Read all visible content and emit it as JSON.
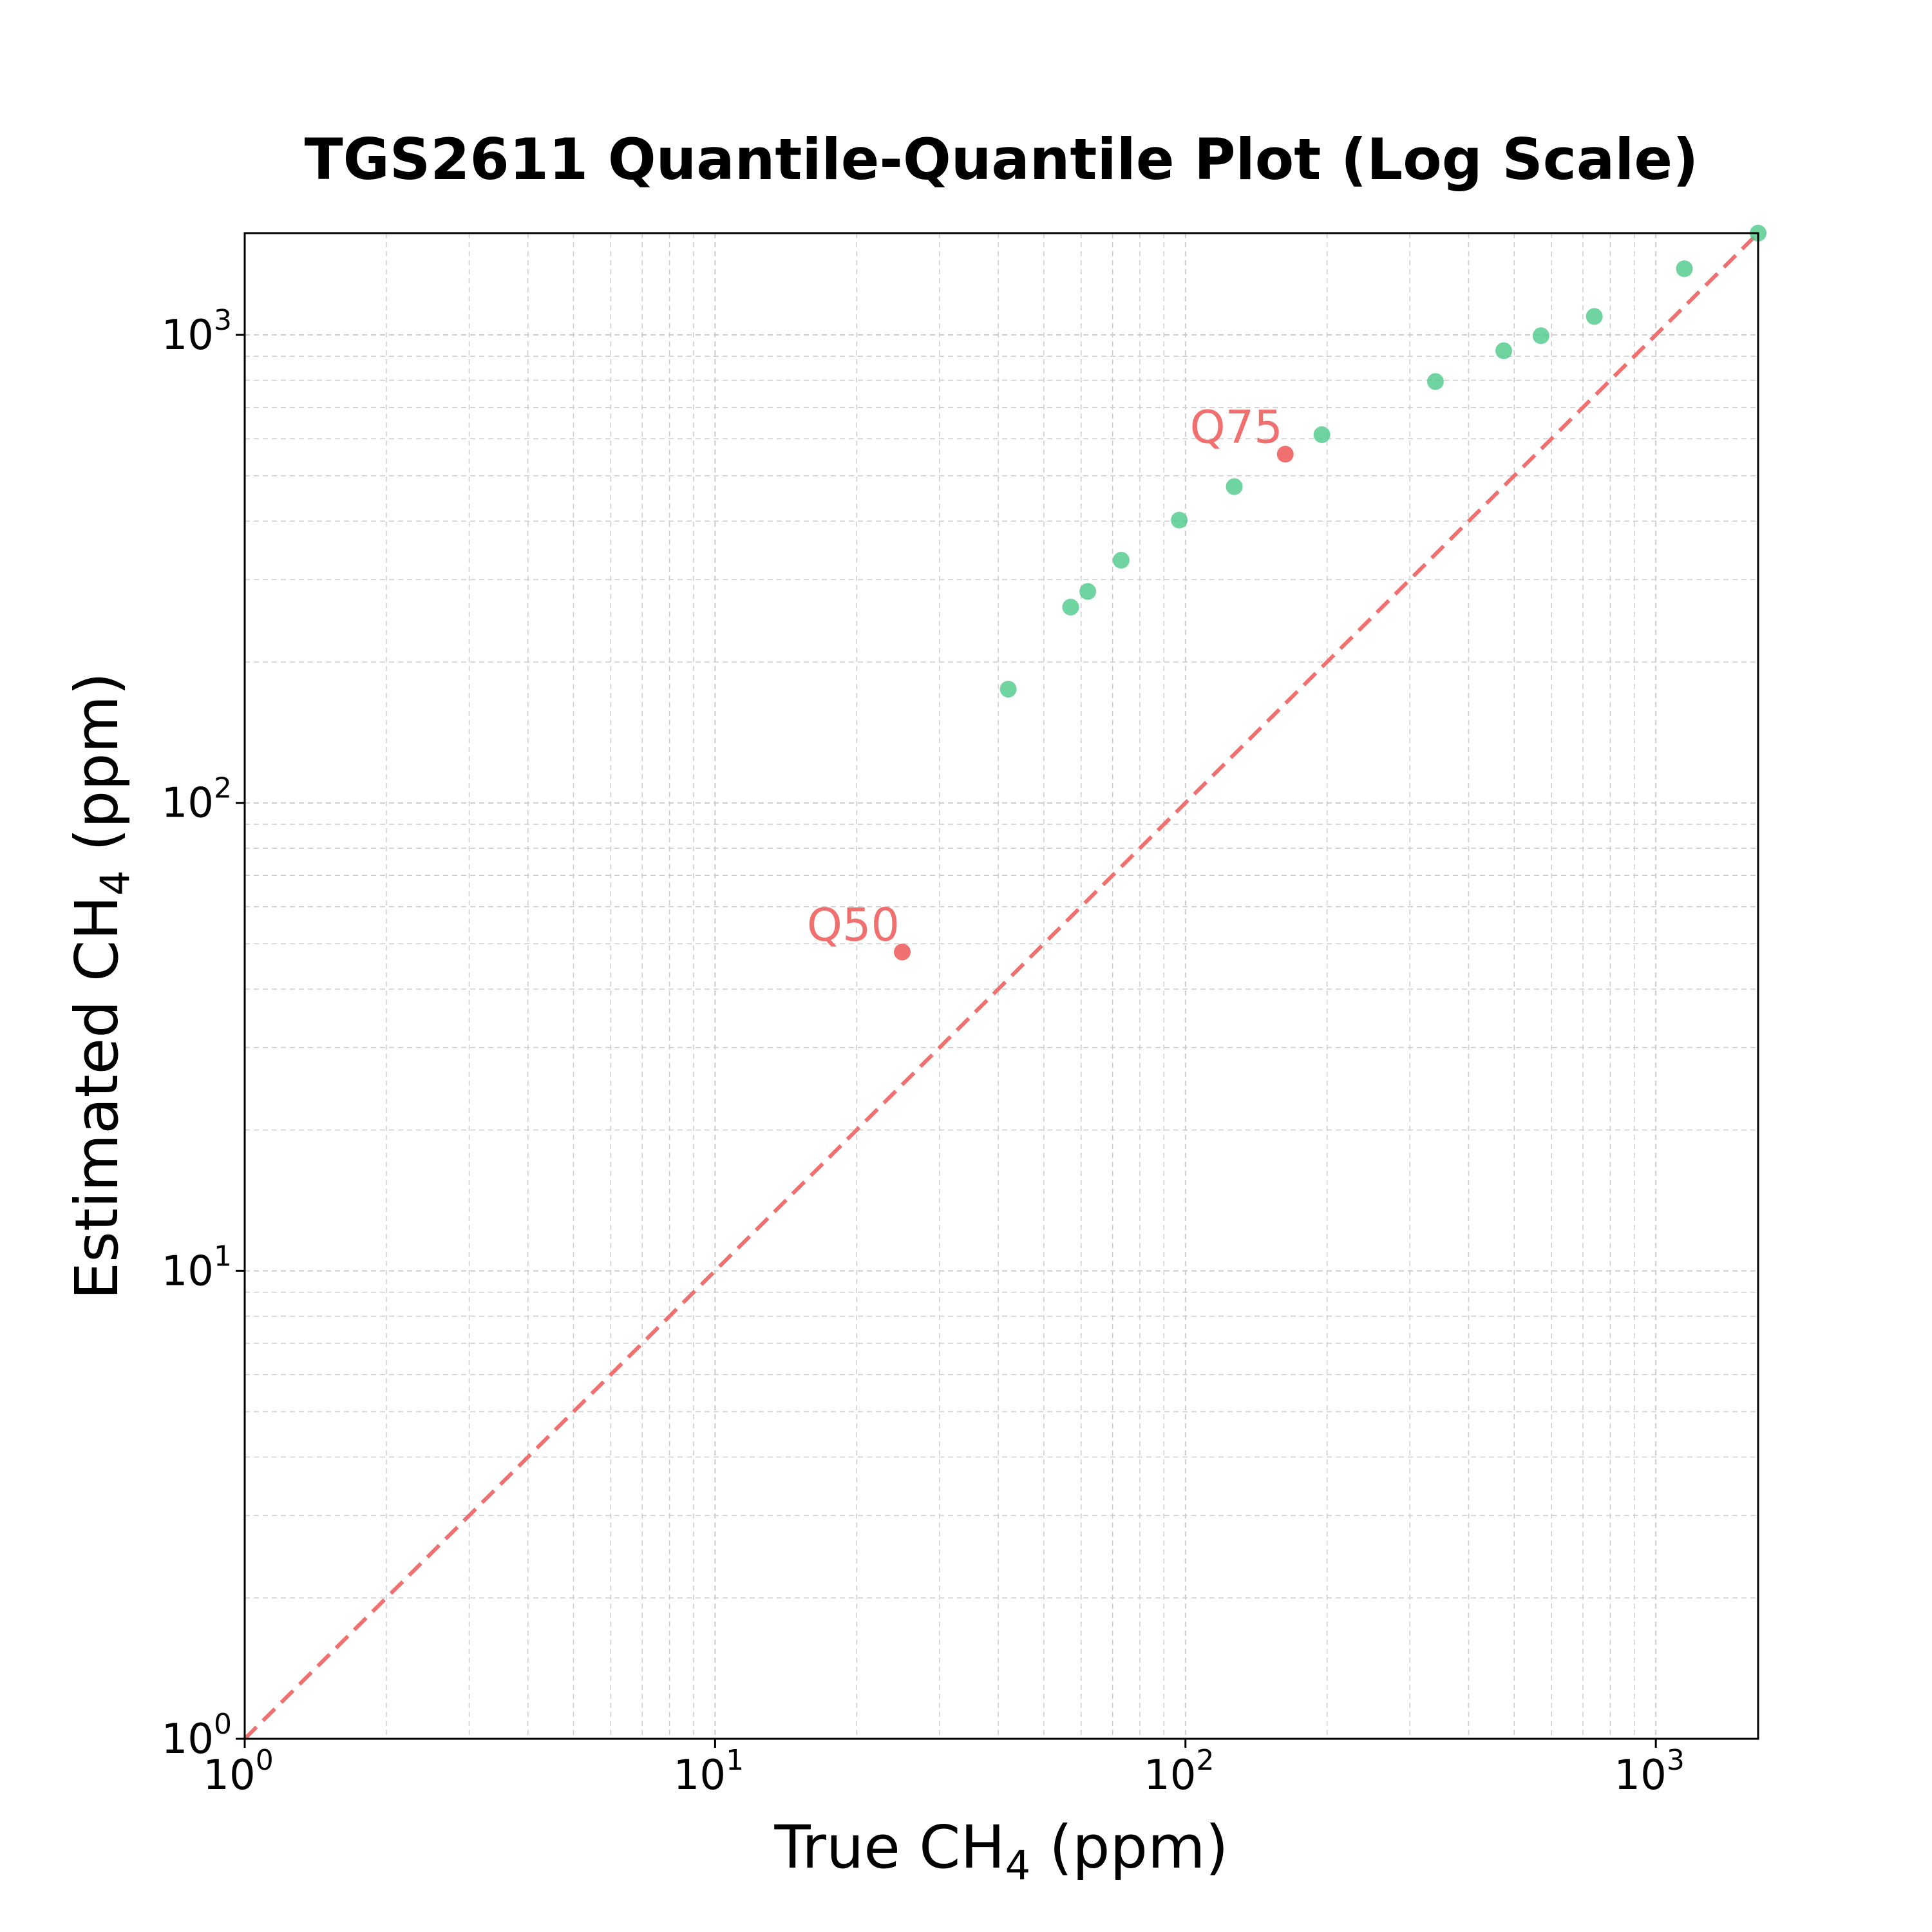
{
  "chart_data": {
    "type": "scatter",
    "title": "TGS2611 Quantile-Quantile Plot (Log Scale)",
    "xlabel": {
      "main": "True CH",
      "sub": "4",
      "tail": " (ppm)"
    },
    "ylabel": {
      "main": "Estimated CH",
      "sub": "4",
      "tail": " (ppm)"
    },
    "xscale": "log",
    "yscale": "log",
    "xlim": [
      1,
      1650
    ],
    "ylim": [
      1,
      1650
    ],
    "grid": true,
    "x_ticks": [
      {
        "base": "10",
        "exp": "0"
      },
      {
        "base": "10",
        "exp": "1"
      },
      {
        "base": "10",
        "exp": "2"
      },
      {
        "base": "10",
        "exp": "3"
      }
    ],
    "y_ticks": [
      {
        "base": "10",
        "exp": "0"
      },
      {
        "base": "10",
        "exp": "1"
      },
      {
        "base": "10",
        "exp": "2"
      },
      {
        "base": "10",
        "exp": "3"
      }
    ],
    "reference_line": {
      "type": "y=x",
      "style": "dashed",
      "color": "#f07070"
    },
    "series": [
      {
        "color": "#4cc98a",
        "points": [
          {
            "x": 42,
            "y": 175
          },
          {
            "x": 57,
            "y": 262
          },
          {
            "x": 62,
            "y": 283
          },
          {
            "x": 73,
            "y": 330
          },
          {
            "x": 97,
            "y": 402
          },
          {
            "x": 127,
            "y": 474
          },
          {
            "x": 195,
            "y": 612
          },
          {
            "x": 340,
            "y": 795
          },
          {
            "x": 475,
            "y": 925
          },
          {
            "x": 570,
            "y": 996
          },
          {
            "x": 740,
            "y": 1095
          },
          {
            "x": 1150,
            "y": 1385
          },
          {
            "x": 1650,
            "y": 1650
          }
        ]
      },
      {
        "color": "#f07070",
        "points": [
          {
            "x": 25,
            "y": 48,
            "label": "Q50"
          },
          {
            "x": 163,
            "y": 556,
            "label": "Q75"
          }
        ]
      }
    ]
  }
}
